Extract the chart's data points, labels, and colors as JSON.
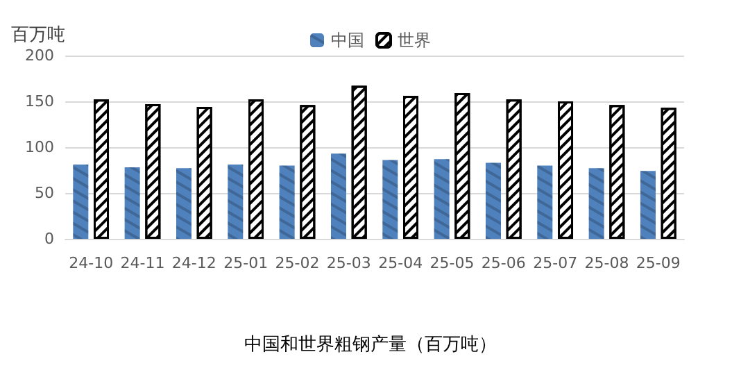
{
  "chart_data": {
    "type": "bar",
    "title": "中国和世界粗钢产量（百万吨）",
    "ylabel": "百万吨",
    "categories": [
      "24-10",
      "24-11",
      "24-12",
      "25-01",
      "25-02",
      "25-03",
      "25-04",
      "25-05",
      "25-06",
      "25-07",
      "25-08",
      "25-09"
    ],
    "series": [
      {
        "name": "中国",
        "color": "#4f81bd",
        "values": [
          81,
          78,
          77,
          81,
          80,
          93,
          86,
          87,
          83,
          80,
          77,
          74
        ]
      },
      {
        "name": "世界",
        "color": "#000000",
        "values": [
          152,
          147,
          144,
          152,
          146,
          167,
          156,
          159,
          152,
          150,
          146,
          143
        ]
      }
    ],
    "ylim": [
      0,
      200
    ],
    "yticks": [
      0,
      50,
      100,
      150,
      200
    ],
    "grid": "y",
    "legend": "top"
  }
}
